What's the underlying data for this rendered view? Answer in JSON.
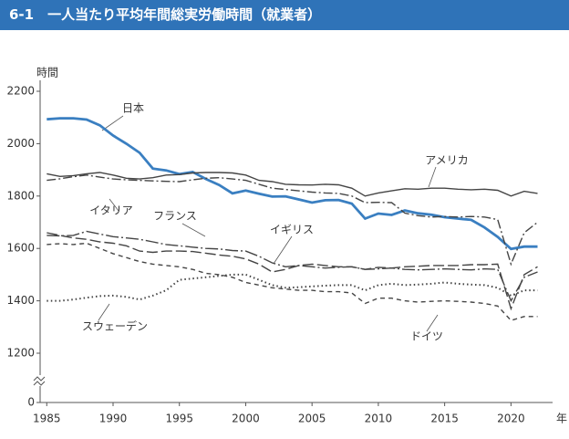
{
  "chart_data": {
    "type": "line",
    "title": "6-1　一人当たり平均年間総実労働時間（就業者）",
    "y_label": "時間",
    "x_label": "年",
    "x": [
      1985,
      1986,
      1987,
      1988,
      1989,
      1990,
      1991,
      1992,
      1993,
      1994,
      1995,
      1996,
      1997,
      1998,
      1999,
      2000,
      2001,
      2002,
      2003,
      2004,
      2005,
      2006,
      2007,
      2008,
      2009,
      2010,
      2011,
      2012,
      2013,
      2014,
      2015,
      2016,
      2017,
      2018,
      2019,
      2020,
      2021,
      2022
    ],
    "xlim": [
      1984.5,
      2023
    ],
    "xticks": [
      1985,
      1990,
      1995,
      2000,
      2005,
      2010,
      2015,
      2020
    ],
    "ylim": [
      0,
      2200
    ],
    "yticks": [
      0,
      1200,
      1400,
      1600,
      1800,
      2000,
      2200
    ],
    "axis_break": true,
    "series": [
      {
        "name": "日本",
        "color": "#3a7fc1",
        "width": 2.8,
        "dash": "",
        "values": [
          2093,
          2097,
          2097,
          2092,
          2070,
          2031,
          2000,
          1965,
          1905,
          1898,
          1884,
          1892,
          1865,
          1842,
          1810,
          1821,
          1809,
          1798,
          1799,
          1787,
          1775,
          1784,
          1785,
          1771,
          1714,
          1733,
          1728,
          1745,
          1734,
          1729,
          1719,
          1714,
          1709,
          1680,
          1644,
          1598,
          1607,
          1607
        ]
      },
      {
        "name": "アメリカ",
        "color": "#444444",
        "width": 1.4,
        "dash": "",
        "values": [
          1885,
          1875,
          1878,
          1885,
          1890,
          1880,
          1868,
          1865,
          1870,
          1880,
          1882,
          1888,
          1890,
          1890,
          1888,
          1880,
          1860,
          1855,
          1845,
          1843,
          1842,
          1845,
          1843,
          1830,
          1800,
          1812,
          1820,
          1828,
          1826,
          1830,
          1830,
          1826,
          1824,
          1826,
          1822,
          1800,
          1818,
          1810
        ]
      },
      {
        "name": "イタリア",
        "color": "#444444",
        "width": 1.4,
        "dash": "10,3,2,3",
        "values": [
          1860,
          1866,
          1874,
          1880,
          1872,
          1865,
          1862,
          1860,
          1858,
          1856,
          1855,
          1862,
          1868,
          1870,
          1865,
          1860,
          1845,
          1830,
          1825,
          1820,
          1815,
          1812,
          1810,
          1800,
          1775,
          1776,
          1775,
          1735,
          1725,
          1720,
          1722,
          1720,
          1722,
          1720,
          1710,
          1540,
          1660,
          1700
        ]
      },
      {
        "name": "フランス",
        "color": "#444444",
        "width": 1.4,
        "dash": "14,3,2,3",
        "values": [
          1650,
          1648,
          1650,
          1665,
          1655,
          1645,
          1640,
          1635,
          1625,
          1615,
          1610,
          1605,
          1600,
          1598,
          1592,
          1590,
          1570,
          1545,
          1530,
          1535,
          1530,
          1525,
          1528,
          1530,
          1520,
          1522,
          1525,
          1520,
          1518,
          1520,
          1522,
          1520,
          1518,
          1522,
          1520,
          1400,
          1490,
          1510
        ]
      },
      {
        "name": "イギリス",
        "color": "#444444",
        "width": 1.4,
        "dash": "12,4",
        "values": [
          1660,
          1650,
          1640,
          1635,
          1625,
          1620,
          1610,
          1590,
          1585,
          1590,
          1590,
          1588,
          1582,
          1575,
          1570,
          1560,
          1540,
          1510,
          1520,
          1535,
          1540,
          1535,
          1530,
          1530,
          1520,
          1528,
          1525,
          1530,
          1532,
          1535,
          1535,
          1535,
          1538,
          1538,
          1540,
          1370,
          1500,
          1530
        ]
      },
      {
        "name": "ドイツ",
        "color": "#444444",
        "width": 1.4,
        "dash": "5,4",
        "values": [
          1615,
          1618,
          1615,
          1620,
          1600,
          1580,
          1565,
          1550,
          1540,
          1535,
          1530,
          1520,
          1505,
          1500,
          1490,
          1470,
          1460,
          1450,
          1445,
          1440,
          1440,
          1435,
          1435,
          1430,
          1390,
          1410,
          1410,
          1400,
          1395,
          1398,
          1400,
          1398,
          1395,
          1390,
          1380,
          1325,
          1340,
          1340
        ]
      },
      {
        "name": "スウェーデン",
        "color": "#444444",
        "width": 2,
        "dash": "1.5,3",
        "values": [
          1400,
          1400,
          1405,
          1412,
          1418,
          1420,
          1415,
          1405,
          1420,
          1440,
          1480,
          1485,
          1490,
          1495,
          1500,
          1500,
          1480,
          1460,
          1450,
          1452,
          1455,
          1458,
          1460,
          1460,
          1440,
          1460,
          1465,
          1460,
          1462,
          1465,
          1470,
          1465,
          1462,
          1460,
          1450,
          1420,
          1440,
          1440
        ]
      }
    ]
  }
}
